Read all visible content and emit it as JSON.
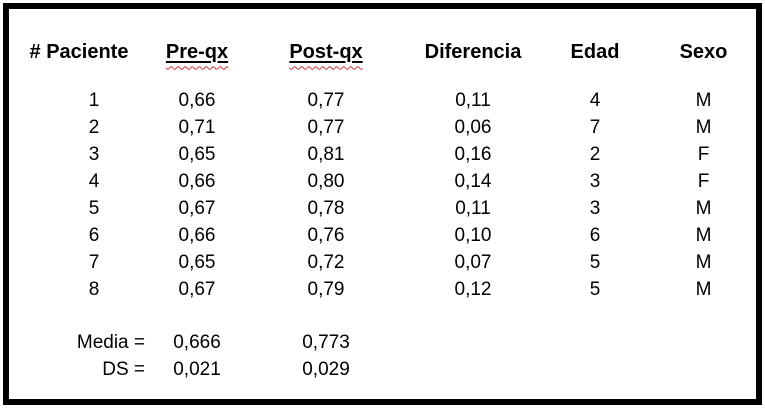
{
  "table": {
    "headers": [
      "# Paciente",
      "Pre-qx",
      "Post-qx",
      "Diferencia",
      "Edad",
      "Sexo"
    ],
    "rows": [
      [
        "1",
        "0,66",
        "0,77",
        "0,11",
        "4",
        "M"
      ],
      [
        "2",
        "0,71",
        "0,77",
        "0,06",
        "7",
        "M"
      ],
      [
        "3",
        "0,65",
        "0,81",
        "0,16",
        "2",
        "F"
      ],
      [
        "4",
        "0,66",
        "0,80",
        "0,14",
        "3",
        "F"
      ],
      [
        "5",
        "0,67",
        "0,78",
        "0,11",
        "3",
        "M"
      ],
      [
        "6",
        "0,66",
        "0,76",
        "0,10",
        "6",
        "M"
      ],
      [
        "7",
        "0,65",
        "0,72",
        "0,07",
        "5",
        "M"
      ],
      [
        "8",
        "0,67",
        "0,79",
        "0,12",
        "5",
        "M"
      ]
    ],
    "summary": [
      {
        "label": "Media =",
        "pre": "0,666",
        "post": "0,773"
      },
      {
        "label": "DS =",
        "pre": "0,021",
        "post": "0,029"
      }
    ]
  },
  "colors": {
    "border": "#000000",
    "text": "#000000",
    "spellcheck_red": "#c83230",
    "background": "#ffffff"
  }
}
